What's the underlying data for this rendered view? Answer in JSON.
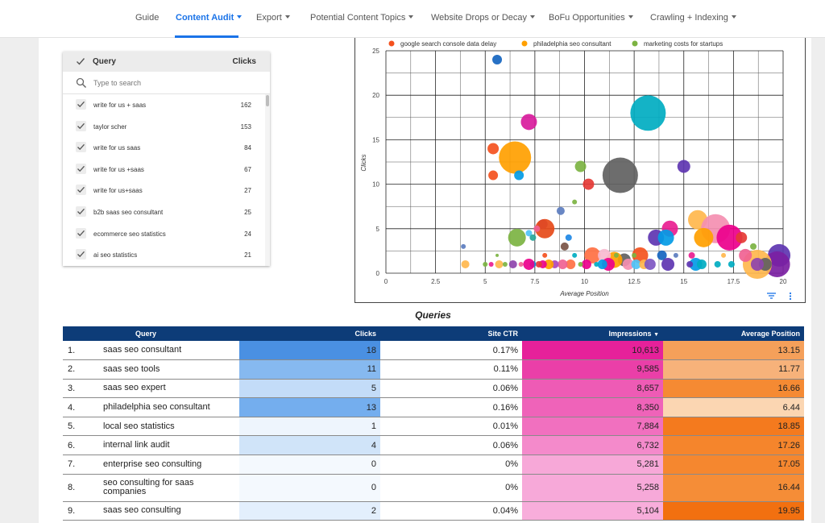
{
  "nav": {
    "items": [
      {
        "label": "Guide",
        "dropdown": false,
        "active": false
      },
      {
        "label": "Content Audit",
        "dropdown": true,
        "active": true
      },
      {
        "label": "Export",
        "dropdown": true,
        "active": false
      },
      {
        "label": "Potential Content Topics",
        "dropdown": true,
        "active": false
      },
      {
        "label": "Website Drops or Decay",
        "dropdown": true,
        "active": false
      },
      {
        "label": "BoFu Opportunities",
        "dropdown": true,
        "active": false
      },
      {
        "label": "Crawling + Indexing",
        "dropdown": true,
        "active": false
      }
    ]
  },
  "query_list": {
    "header_query": "Query",
    "header_clicks": "Clicks",
    "search_placeholder": "Type to search",
    "rows": [
      {
        "label": "write for us + saas",
        "value": "162"
      },
      {
        "label": "taylor scher",
        "value": "153"
      },
      {
        "label": "write for us saas",
        "value": "84"
      },
      {
        "label": "write for us +saas",
        "value": "67"
      },
      {
        "label": "write for us+saas",
        "value": "27"
      },
      {
        "label": "b2b saas seo consultant",
        "value": "25"
      },
      {
        "label": "ecommerce seo statistics",
        "value": "24"
      },
      {
        "label": "ai seo statistics",
        "value": "21"
      }
    ]
  },
  "chart_data": {
    "type": "scatter",
    "title": "",
    "xlabel": "Average Position",
    "ylabel": "Clicks",
    "xlim": [
      0,
      20
    ],
    "ylim": [
      0,
      25
    ],
    "xticks": [
      "0",
      "2.5",
      "5",
      "7.5",
      "10",
      "12.5",
      "15",
      "17.5",
      "20"
    ],
    "yticks": [
      "0",
      "5",
      "10",
      "15",
      "20",
      "25"
    ],
    "grid": true,
    "legend": [
      {
        "name": "google search console data delay",
        "color": "#f4511e"
      },
      {
        "name": "philadelphia seo consultant",
        "color": "#ffa000"
      },
      {
        "name": "marketing costs for startups",
        "color": "#7cb342"
      }
    ],
    "points": [
      {
        "x": 5.6,
        "y": 24,
        "s": 3,
        "c": "#1565c0"
      },
      {
        "x": 13.2,
        "y": 18,
        "s": 11,
        "c": "#00acc1"
      },
      {
        "x": 7.2,
        "y": 17,
        "s": 5,
        "c": "#d81b9c"
      },
      {
        "x": 5.4,
        "y": 14,
        "s": 3.5,
        "c": "#f4511e"
      },
      {
        "x": 6.5,
        "y": 13,
        "s": 10,
        "c": "#ffa000"
      },
      {
        "x": 5.4,
        "y": 11,
        "s": 3,
        "c": "#f4511e"
      },
      {
        "x": 6.7,
        "y": 11,
        "s": 3,
        "c": "#039be5"
      },
      {
        "x": 9.8,
        "y": 12,
        "s": 3.5,
        "c": "#7cb342"
      },
      {
        "x": 11.8,
        "y": 11,
        "s": 11,
        "c": "#616161"
      },
      {
        "x": 15.0,
        "y": 12,
        "s": 4,
        "c": "#5e35b1"
      },
      {
        "x": 10.2,
        "y": 10,
        "s": 3.5,
        "c": "#e53935"
      },
      {
        "x": 9.5,
        "y": 8,
        "s": 1.5,
        "c": "#7cb342"
      },
      {
        "x": 8.8,
        "y": 7,
        "s": 2.5,
        "c": "#5c7dbf"
      },
      {
        "x": 7.9,
        "y": 5.5,
        "s": 3,
        "c": "#8e44ad"
      },
      {
        "x": 8.0,
        "y": 5,
        "s": 6,
        "c": "#e64a19"
      },
      {
        "x": 7.6,
        "y": 5,
        "s": 2,
        "c": "#f06292"
      },
      {
        "x": 7.2,
        "y": 4.5,
        "s": 2,
        "c": "#4fc3f7"
      },
      {
        "x": 6.6,
        "y": 4,
        "s": 5.5,
        "c": "#7cb342"
      },
      {
        "x": 7.4,
        "y": 4,
        "s": 2,
        "c": "#26a69a"
      },
      {
        "x": 9.2,
        "y": 4,
        "s": 2,
        "c": "#1e88e5"
      },
      {
        "x": 9.0,
        "y": 3,
        "s": 2.5,
        "c": "#795548"
      },
      {
        "x": 3.9,
        "y": 3,
        "s": 1.5,
        "c": "#5c7dbf"
      },
      {
        "x": 15.7,
        "y": 6,
        "s": 6,
        "c": "#ffb74d"
      },
      {
        "x": 16.6,
        "y": 5,
        "s": 9,
        "c": "#f48fb1"
      },
      {
        "x": 17.3,
        "y": 4,
        "s": 8,
        "c": "#ec008c"
      },
      {
        "x": 16.0,
        "y": 4,
        "s": 6,
        "c": "#ffa000"
      },
      {
        "x": 14.3,
        "y": 5,
        "s": 5,
        "c": "#e91e90"
      },
      {
        "x": 13.6,
        "y": 4,
        "s": 5,
        "c": "#5e35b1"
      },
      {
        "x": 14.1,
        "y": 4,
        "s": 5,
        "c": "#039be5"
      },
      {
        "x": 17.9,
        "y": 4,
        "s": 3.5,
        "c": "#e53935"
      },
      {
        "x": 18.5,
        "y": 3,
        "s": 2,
        "c": "#7cb342"
      },
      {
        "x": 19.8,
        "y": 2,
        "s": 7,
        "c": "#5e35b1"
      },
      {
        "x": 19.7,
        "y": 1,
        "s": 8,
        "c": "#7b1fa2"
      },
      {
        "x": 18.7,
        "y": 1,
        "s": 9,
        "c": "#ffb74d"
      },
      {
        "x": 19.1,
        "y": 1,
        "s": 4,
        "c": "#616161"
      },
      {
        "x": 18.7,
        "y": 1,
        "s": 4,
        "c": "#8e44ad"
      },
      {
        "x": 18.1,
        "y": 2,
        "s": 4,
        "c": "#f06292"
      },
      {
        "x": 12.8,
        "y": 2,
        "s": 5,
        "c": "#f4511e"
      },
      {
        "x": 12.0,
        "y": 1.5,
        "s": 4,
        "c": "#616161"
      },
      {
        "x": 11.5,
        "y": 1.5,
        "s": 5,
        "c": "#ffa000"
      },
      {
        "x": 10.4,
        "y": 2,
        "s": 5,
        "c": "#ff7043"
      },
      {
        "x": 11.0,
        "y": 2,
        "s": 4,
        "c": "#f8bbd0"
      },
      {
        "x": 11.2,
        "y": 1,
        "s": 4,
        "c": "#ec008c"
      },
      {
        "x": 12.2,
        "y": 1,
        "s": 3.5,
        "c": "#f48fb1"
      },
      {
        "x": 12.6,
        "y": 1,
        "s": 3,
        "c": "#4fc3f7"
      },
      {
        "x": 13.0,
        "y": 1,
        "s": 3,
        "c": "#ffb74d"
      },
      {
        "x": 13.3,
        "y": 1,
        "s": 3.5,
        "c": "#7e57c2"
      },
      {
        "x": 13.9,
        "y": 2,
        "s": 3,
        "c": "#1565c0"
      },
      {
        "x": 14.2,
        "y": 1,
        "s": 4,
        "c": "#5e35b1"
      },
      {
        "x": 15.4,
        "y": 2,
        "s": 2,
        "c": "#e91e90"
      },
      {
        "x": 15.6,
        "y": 1,
        "s": 4,
        "c": "#039be5"
      },
      {
        "x": 15.9,
        "y": 1,
        "s": 3,
        "c": "#00acc1"
      },
      {
        "x": 15.3,
        "y": 1,
        "s": 2,
        "c": "#5e35b1"
      },
      {
        "x": 16.7,
        "y": 1,
        "s": 2,
        "c": "#00acc1"
      },
      {
        "x": 17.4,
        "y": 1,
        "s": 2,
        "c": "#00acc1"
      },
      {
        "x": 10.9,
        "y": 1,
        "s": 3,
        "c": "#039be5"
      },
      {
        "x": 10.1,
        "y": 1,
        "s": 3,
        "c": "#ec008c"
      },
      {
        "x": 9.3,
        "y": 1,
        "s": 3,
        "c": "#ff7043"
      },
      {
        "x": 8.9,
        "y": 1,
        "s": 3,
        "c": "#f06292"
      },
      {
        "x": 8.5,
        "y": 1,
        "s": 2.5,
        "c": "#ab47bc"
      },
      {
        "x": 8.2,
        "y": 1,
        "s": 3,
        "c": "#ffa000"
      },
      {
        "x": 7.9,
        "y": 1,
        "s": 2.5,
        "c": "#ec008c"
      },
      {
        "x": 7.7,
        "y": 1,
        "s": 2,
        "c": "#e53935"
      },
      {
        "x": 7.4,
        "y": 1,
        "s": 2,
        "c": "#039be5"
      },
      {
        "x": 7.2,
        "y": 1,
        "s": 3.5,
        "c": "#ec008c"
      },
      {
        "x": 6.4,
        "y": 1,
        "s": 2.5,
        "c": "#8e44ad"
      },
      {
        "x": 5.7,
        "y": 1,
        "s": 2.5,
        "c": "#ffb74d"
      },
      {
        "x": 5.3,
        "y": 1,
        "s": 1.5,
        "c": "#e91e90"
      },
      {
        "x": 5.0,
        "y": 1,
        "s": 1.5,
        "c": "#7cb342"
      },
      {
        "x": 4.0,
        "y": 1,
        "s": 2.5,
        "c": "#ffb74d"
      },
      {
        "x": 6.0,
        "y": 1,
        "s": 1.5,
        "c": "#7cb342"
      },
      {
        "x": 5.6,
        "y": 2,
        "s": 1,
        "c": "#7cb342"
      },
      {
        "x": 8.0,
        "y": 2,
        "s": 1.5,
        "c": "#f4511e"
      },
      {
        "x": 9.5,
        "y": 2,
        "s": 1.5,
        "c": "#00acc1"
      },
      {
        "x": 11.6,
        "y": 2,
        "s": 1.5,
        "c": "#7cb342"
      },
      {
        "x": 14.6,
        "y": 2,
        "s": 1.5,
        "c": "#5c7dbf"
      },
      {
        "x": 10.6,
        "y": 1,
        "s": 1.5,
        "c": "#00acc1"
      },
      {
        "x": 9.8,
        "y": 1,
        "s": 1.5,
        "c": "#7cb342"
      },
      {
        "x": 6.8,
        "y": 1,
        "s": 1.5,
        "c": "#f06292"
      },
      {
        "x": 12.5,
        "y": 2,
        "s": 1.5,
        "c": "#7cb342"
      },
      {
        "x": 17.0,
        "y": 2,
        "s": 1.5,
        "c": "#ffb74d"
      }
    ]
  },
  "table": {
    "title": "Queries",
    "headers": {
      "query": "Query",
      "clicks": "Clicks",
      "ctr": "Site CTR",
      "impressions": "Impressions",
      "position": "Average Position"
    },
    "rows": [
      {
        "rank": "1.",
        "query": "saas seo consultant",
        "clicks": "18",
        "ctr": "0.17%",
        "impressions": "10,613",
        "position": "13.15",
        "clicks_color": "#4a90e2",
        "imp_color": "#e6219a",
        "pos_color": "#f5a05a"
      },
      {
        "rank": "2.",
        "query": "saas seo tools",
        "clicks": "11",
        "ctr": "0.11%",
        "impressions": "9,585",
        "position": "11.77",
        "clicks_color": "#86b9f0",
        "imp_color": "#ea3fa8",
        "pos_color": "#f7b27a"
      },
      {
        "rank": "3.",
        "query": "saas seo expert",
        "clicks": "5",
        "ctr": "0.06%",
        "impressions": "8,657",
        "position": "16.66",
        "clicks_color": "#c3dcf8",
        "imp_color": "#ee5bb5",
        "pos_color": "#f58a33"
      },
      {
        "rank": "4.",
        "query": "philadelphia seo consultant",
        "clicks": "13",
        "ctr": "0.16%",
        "impressions": "8,350",
        "position": "6.44",
        "clicks_color": "#74aeee",
        "imp_color": "#ef63b9",
        "pos_color": "#fbd6b2"
      },
      {
        "rank": "5.",
        "query": "local seo statistics",
        "clicks": "1",
        "ctr": "0.01%",
        "impressions": "7,884",
        "position": "18.85",
        "clicks_color": "#eef5fd",
        "imp_color": "#f170bf",
        "pos_color": "#f47a1e"
      },
      {
        "rank": "6.",
        "query": "internal link audit",
        "clicks": "4",
        "ctr": "0.06%",
        "impressions": "6,732",
        "position": "17.26",
        "clicks_color": "#d0e4f9",
        "imp_color": "#f48acb",
        "pos_color": "#f5852c"
      },
      {
        "rank": "7.",
        "query": "enterprise seo consulting",
        "clicks": "0",
        "ctr": "0%",
        "impressions": "5,281",
        "position": "17.05",
        "clicks_color": "#f4f9fe",
        "imp_color": "#f7a8d8",
        "pos_color": "#f5872f"
      },
      {
        "rank": "8.",
        "query": "seo consulting for saas companies",
        "clicks": "0",
        "ctr": "0%",
        "impressions": "5,258",
        "position": "16.44",
        "clicks_color": "#f4f9fe",
        "imp_color": "#f7a9d9",
        "pos_color": "#f58d37"
      },
      {
        "rank": "9.",
        "query": "saas seo consulting",
        "clicks": "2",
        "ctr": "0.04%",
        "impressions": "5,104",
        "position": "19.95",
        "clicks_color": "#e3effc",
        "imp_color": "#f8addb",
        "pos_color": "#f27010"
      }
    ]
  }
}
